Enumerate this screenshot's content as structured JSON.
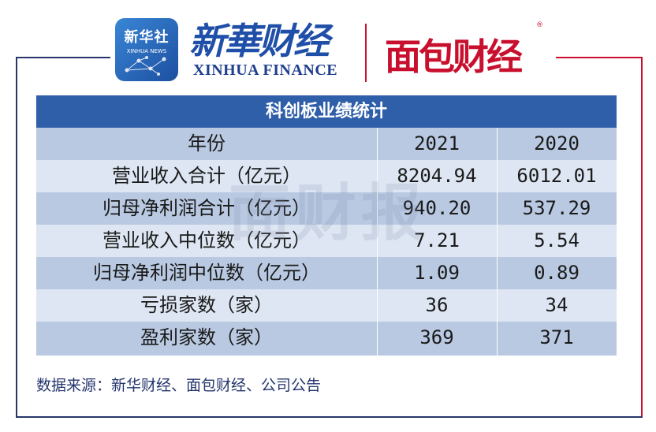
{
  "header": {
    "xinhua_badge_cn": "新华社",
    "xinhua_badge_en": "XINHUA NEWS",
    "xinhua_finance_cn": "新華财经",
    "xinhua_finance_en": "XINHUA FINANCE",
    "mianbao_logo": "面包财经",
    "registered_mark": "®"
  },
  "watermark": "面财报",
  "table": {
    "title": "科创板业绩统计",
    "header": {
      "label": "年份",
      "col1": "2021",
      "col2": "2020"
    },
    "rows": [
      {
        "label": "营业收入合计（亿元）",
        "col1": "8204.94",
        "col2": "6012.01"
      },
      {
        "label": "归母净利润合计（亿元）",
        "col1": "940.20",
        "col2": "537.29"
      },
      {
        "label": "营业收入中位数（亿元）",
        "col1": "7.21",
        "col2": "5.54"
      },
      {
        "label": "归母净利润中位数（亿元）",
        "col1": "1.09",
        "col2": "0.89"
      },
      {
        "label": "亏损家数（家）",
        "col1": "36",
        "col2": "34"
      },
      {
        "label": "盈利家数（家）",
        "col1": "369",
        "col2": "371"
      }
    ],
    "colors": {
      "title_bg": "#2f5fa8",
      "row_dark": "#b9c9e2",
      "row_light": "#dde6f2"
    }
  },
  "source": "数据来源：新华财经、面包财经、公司公告"
}
